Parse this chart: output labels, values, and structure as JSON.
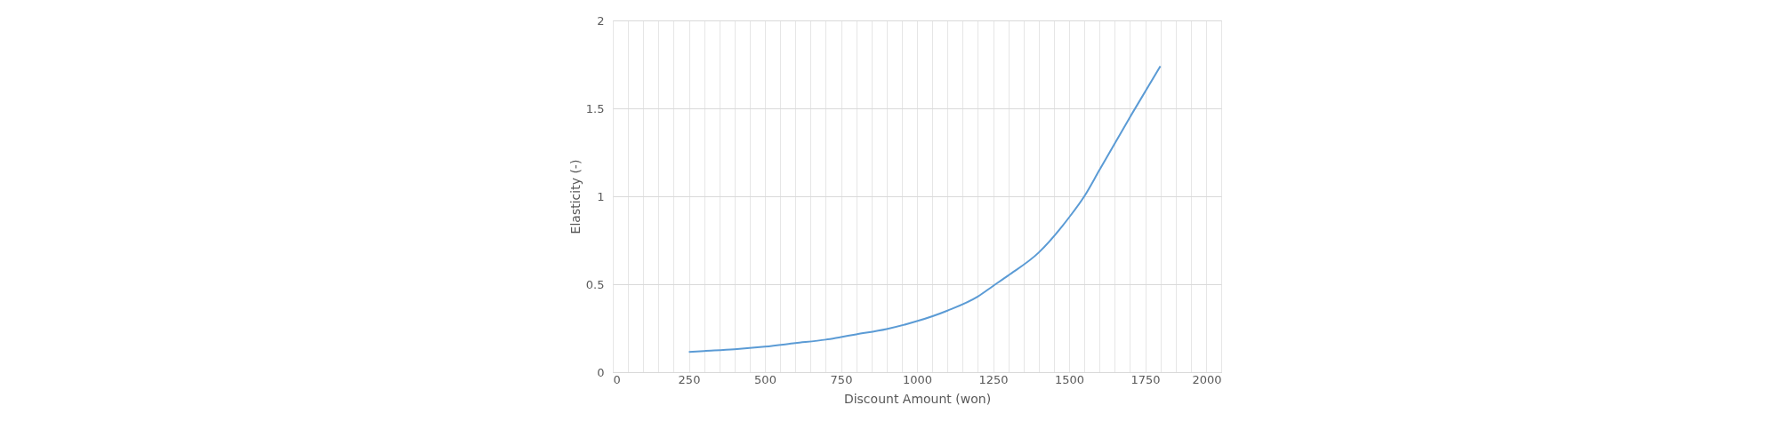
{
  "chart_data": {
    "type": "line",
    "xlabel": "Discount Amount  (won)",
    "ylabel": "Elasticity (-)",
    "x": [
      250,
      300,
      400,
      500,
      600,
      700,
      750,
      800,
      900,
      1000,
      1100,
      1200,
      1250,
      1300,
      1400,
      1500,
      1550,
      1600,
      1700,
      1800
    ],
    "series": [
      {
        "color": "#5b9bd5",
        "values": [
          0.115,
          0.12,
          0.13,
          0.145,
          0.165,
          0.185,
          0.2,
          0.215,
          0.245,
          0.29,
          0.35,
          0.43,
          0.49,
          0.55,
          0.68,
          0.88,
          1.0,
          1.15,
          1.45,
          1.74
        ]
      }
    ],
    "xlim": [
      0,
      2000
    ],
    "xticks": [
      0,
      {
        "value": 50,
        "label": null
      },
      {
        "value": 100,
        "label": null
      },
      {
        "value": 150,
        "label": null
      },
      {
        "value": 200,
        "label": null
      },
      250,
      {
        "value": 300,
        "label": null
      },
      {
        "value": 350,
        "label": null
      },
      {
        "value": 400,
        "label": null
      },
      {
        "value": 450,
        "label": null
      },
      500,
      {
        "value": 550,
        "label": null
      },
      {
        "value": 600,
        "label": null
      },
      {
        "value": 650,
        "label": null
      },
      {
        "value": 700,
        "label": null
      },
      750,
      {
        "value": 800,
        "label": null
      },
      {
        "value": 850,
        "label": null
      },
      {
        "value": 900,
        "label": null
      },
      {
        "value": 950,
        "label": null
      },
      1000,
      {
        "value": 1050,
        "label": null
      },
      {
        "value": 1100,
        "label": null
      },
      {
        "value": 1150,
        "label": null
      },
      {
        "value": 1200,
        "label": null
      },
      1250,
      {
        "value": 1300,
        "label": null
      },
      {
        "value": 1350,
        "label": null
      },
      {
        "value": 1400,
        "label": null
      },
      {
        "value": 1450,
        "label": null
      },
      1500,
      {
        "value": 1550,
        "label": null
      },
      {
        "value": 1600,
        "label": null
      },
      {
        "value": 1650,
        "label": null
      },
      {
        "value": 1700,
        "label": null
      },
      1750,
      {
        "value": 1800,
        "label": null
      },
      {
        "value": 1850,
        "label": null
      },
      {
        "value": 1900,
        "label": null
      },
      {
        "value": 1950,
        "label": null
      },
      2000
    ],
    "ylim": [
      0,
      2
    ],
    "yticks": [
      0,
      0.5,
      1,
      1.5,
      2
    ],
    "grid": true,
    "marker": "none",
    "line_style": "solid"
  }
}
